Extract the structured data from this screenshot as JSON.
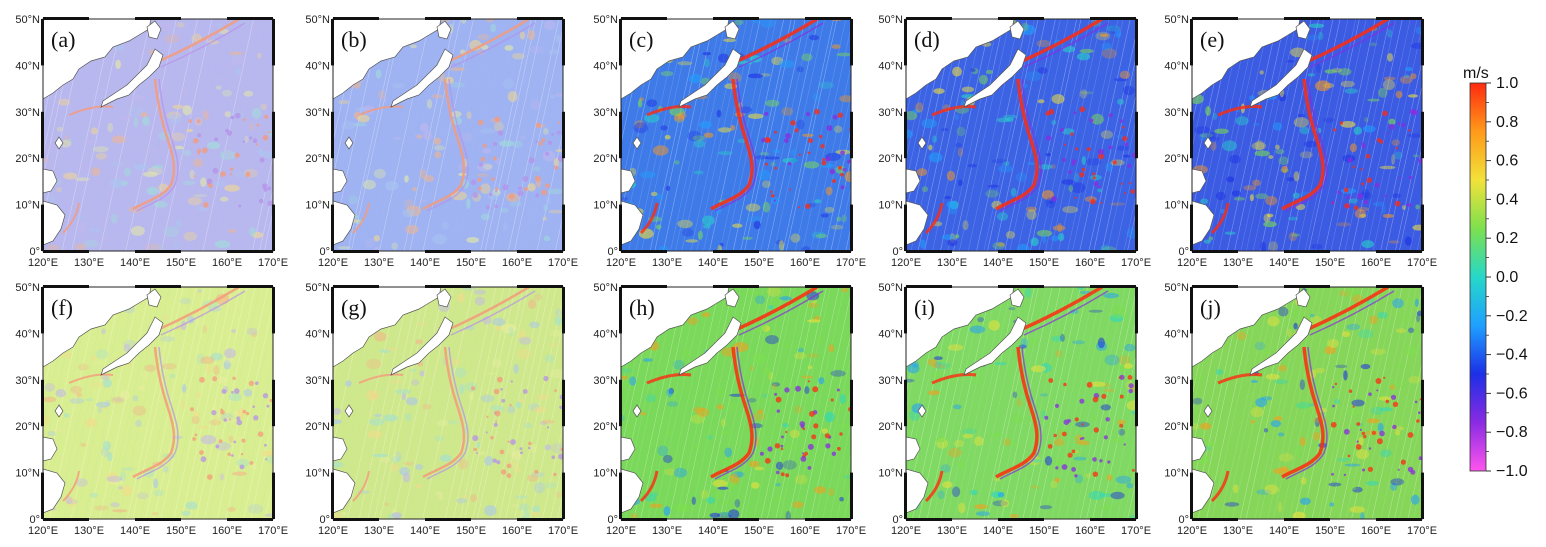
{
  "figure": {
    "colorbar": {
      "unit": "m/s",
      "ticks": [
        "1.0",
        "0.8",
        "0.6",
        "0.4",
        "0.2",
        "0.0",
        "−0.2",
        "−0.4",
        "−0.6",
        "−0.8",
        "−1.0"
      ],
      "range": [
        -1.0,
        1.0
      ],
      "colors": [
        "#ff55ee",
        "#8a2be2",
        "#1c2fe6",
        "#1fa0ff",
        "#26d8c8",
        "#7de04e",
        "#f2e23a",
        "#ff9a1a",
        "#ff2a10"
      ]
    },
    "map": {
      "lon_labels": [
        "120°E",
        "130°E",
        "140°E",
        "150°E",
        "160°E",
        "170°E"
      ],
      "lat_labels": [
        "50°N",
        "40°N",
        "30°N",
        "20°N",
        "10°N",
        "0°"
      ],
      "lon_range": [
        120,
        170
      ],
      "lat_range": [
        0,
        50
      ],
      "land_color": "#ffffff",
      "coast_color": "#555555"
    },
    "panels": [
      {
        "label": "(a)",
        "background": "#b9b8ee",
        "tint": "pastel"
      },
      {
        "label": "(b)",
        "background": "#9fb3f2",
        "tint": "pastel"
      },
      {
        "label": "(c)",
        "background": "#3f7be8",
        "tint": "saturated"
      },
      {
        "label": "(d)",
        "background": "#3c63e4",
        "tint": "saturated"
      },
      {
        "label": "(e)",
        "background": "#3b5be2",
        "tint": "saturated"
      },
      {
        "label": "(f)",
        "background": "#d9ee90",
        "tint": "pastel"
      },
      {
        "label": "(g)",
        "background": "#cfe88c",
        "tint": "pastel"
      },
      {
        "label": "(h)",
        "background": "#7ad85a",
        "tint": "saturated"
      },
      {
        "label": "(i)",
        "background": "#7fd962",
        "tint": "saturated"
      },
      {
        "label": "(j)",
        "background": "#86d65a",
        "tint": "saturated"
      }
    ]
  }
}
